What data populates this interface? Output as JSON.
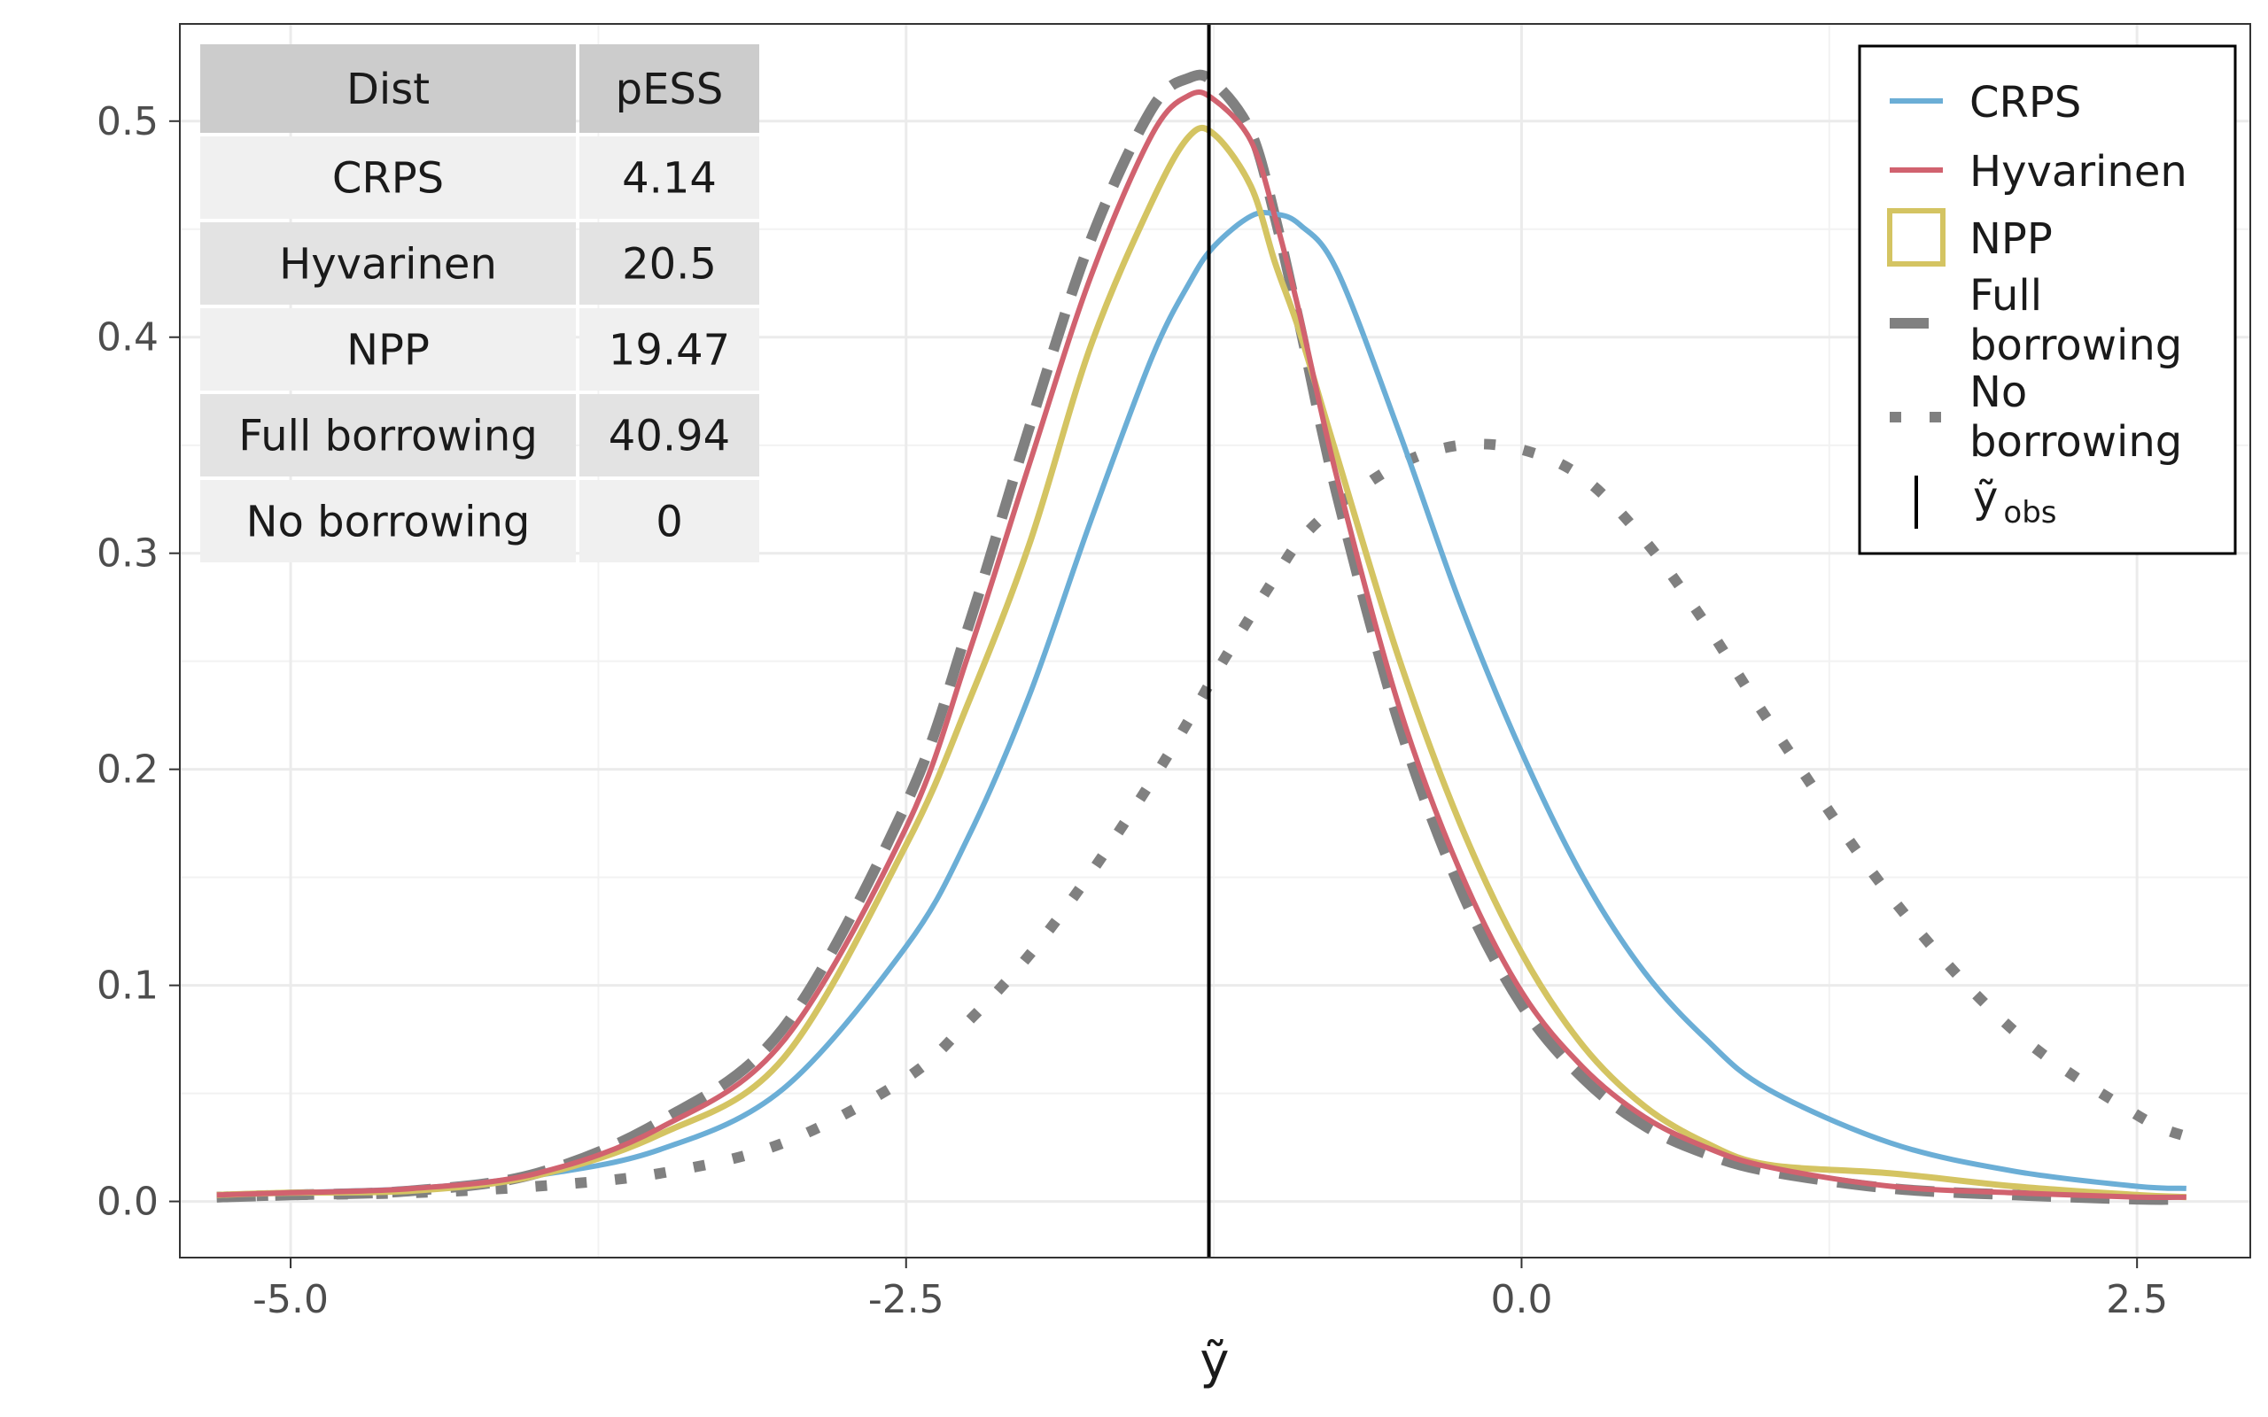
{
  "colors": {
    "crps": "#6BAED6",
    "hyvarinen": "#D1626F",
    "npp": "#D4C462",
    "full": "#808080",
    "none": "#808080",
    "obs": "#000000",
    "table_header_bg": "#CCCCCC",
    "table_row_bg_light": "#F0F0F0",
    "table_row_bg_dark": "#E3E3E3"
  },
  "chart_data": {
    "type": "line",
    "title": "",
    "xlabel": "ỹ",
    "ylabel": "",
    "xlim": [
      -5.45,
      2.96
    ],
    "ylim": [
      -0.026,
      0.545
    ],
    "xticks": [
      -5.0,
      -2.5,
      0.0,
      2.5
    ],
    "xtick_labels": [
      "-5.0",
      "-2.5",
      "0.0",
      "2.5"
    ],
    "yticks": [
      0.0,
      0.1,
      0.2,
      0.3,
      0.4,
      0.5
    ],
    "ytick_labels": [
      "0.0",
      "0.1",
      "0.2",
      "0.3",
      "0.4",
      "0.5"
    ],
    "grid": true,
    "legend_position": "top-right",
    "vline": {
      "name": "ỹ obs",
      "x": -1.27
    },
    "x": [
      -5.3,
      -5.0,
      -4.5,
      -4.0,
      -3.5,
      -3.0,
      -2.5,
      -2.25,
      -2.0,
      -1.75,
      -1.5,
      -1.35,
      -1.25,
      -1.1,
      -1.0,
      -0.9,
      -0.75,
      -0.5,
      -0.25,
      0.0,
      0.25,
      0.5,
      0.75,
      1.0,
      1.5,
      2.0,
      2.5,
      2.7
    ],
    "series": [
      {
        "name": "CRPS",
        "style": "solid",
        "values": [
          0.003,
          0.004,
          0.006,
          0.012,
          0.024,
          0.052,
          0.118,
          0.168,
          0.234,
          0.315,
          0.391,
          0.425,
          0.442,
          0.456,
          0.457,
          0.452,
          0.431,
          0.357,
          0.277,
          0.208,
          0.15,
          0.106,
          0.075,
          0.052,
          0.027,
          0.014,
          0.007,
          0.006
        ]
      },
      {
        "name": "Hyvarinen",
        "style": "solid",
        "values": [
          0.003,
          0.004,
          0.006,
          0.013,
          0.034,
          0.074,
          0.173,
          0.252,
          0.341,
          0.428,
          0.494,
          0.512,
          0.51,
          0.491,
          0.455,
          0.41,
          0.335,
          0.23,
          0.153,
          0.097,
          0.062,
          0.039,
          0.025,
          0.016,
          0.007,
          0.004,
          0.002,
          0.002
        ]
      },
      {
        "name": "NPP",
        "style": "solid",
        "values": [
          0.003,
          0.004,
          0.005,
          0.012,
          0.031,
          0.066,
          0.165,
          0.23,
          0.304,
          0.396,
          0.463,
          0.493,
          0.494,
          0.47,
          0.434,
          0.402,
          0.345,
          0.252,
          0.175,
          0.115,
          0.072,
          0.044,
          0.027,
          0.017,
          0.013,
          0.007,
          0.003,
          0.002
        ]
      },
      {
        "name": "Full borrowing",
        "style": "dashed",
        "values": [
          0.002,
          0.003,
          0.005,
          0.013,
          0.037,
          0.08,
          0.184,
          0.265,
          0.358,
          0.445,
          0.506,
          0.52,
          0.518,
          0.495,
          0.455,
          0.405,
          0.327,
          0.222,
          0.145,
          0.091,
          0.057,
          0.035,
          0.022,
          0.014,
          0.006,
          0.003,
          0.001,
          0.001
        ]
      },
      {
        "name": "No borrowing",
        "style": "dotted",
        "values": [
          0.002,
          0.003,
          0.004,
          0.007,
          0.013,
          0.027,
          0.057,
          0.083,
          0.114,
          0.152,
          0.195,
          0.223,
          0.243,
          0.271,
          0.289,
          0.306,
          0.322,
          0.341,
          0.35,
          0.348,
          0.335,
          0.306,
          0.267,
          0.223,
          0.141,
          0.079,
          0.04,
          0.03
        ]
      }
    ],
    "legend": [
      {
        "label": "CRPS",
        "key": "crps"
      },
      {
        "label": "Hyvarinen",
        "key": "hyvarinen"
      },
      {
        "label": "NPP",
        "key": "npp"
      },
      {
        "label": "Full borrowing",
        "key": "full"
      },
      {
        "label": "No borrowing",
        "key": "none"
      },
      {
        "label": "ỹ obs",
        "key": "obs"
      }
    ],
    "table": {
      "header": [
        "Dist",
        "pESS"
      ],
      "rows": [
        [
          "CRPS",
          "4.14"
        ],
        [
          "Hyvarinen",
          "20.5"
        ],
        [
          "NPP",
          "19.47"
        ],
        [
          "Full borrowing",
          "40.94"
        ],
        [
          "No borrowing",
          "0"
        ]
      ]
    }
  }
}
